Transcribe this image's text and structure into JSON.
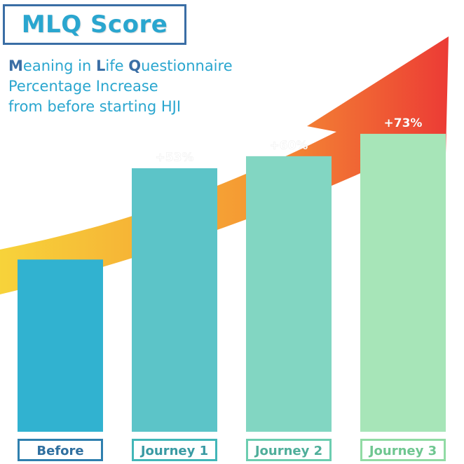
{
  "chart_data": {
    "type": "bar",
    "title": "MLQ Score",
    "subtitle_lines": [
      "Meaning in Life Questionnaire",
      "Percentage Increase",
      "from before starting HJI"
    ],
    "categories": [
      "Before",
      "Journey 1",
      "Journey 2",
      "Journey 3"
    ],
    "values": [
      100,
      153,
      160,
      173
    ],
    "data_labels": [
      "",
      "+53%",
      "+60%",
      "+73%"
    ],
    "ylim": [
      0,
      210
    ],
    "grid": false,
    "legend": "none",
    "bar_colors": [
      "#31b2d0",
      "#5cc4c8",
      "#82d6c2",
      "#a7e5b8"
    ],
    "label_border_colors": [
      "#2f7fae",
      "#42b6b8",
      "#6ccdb0",
      "#91dba4"
    ],
    "label_text_colors": [
      "#2f6f9f",
      "#3a9aa3",
      "#4fae9a",
      "#6fc690"
    ],
    "arrow_colors": [
      "#f7d33a",
      "#f59a33",
      "#ec3b35"
    ]
  }
}
